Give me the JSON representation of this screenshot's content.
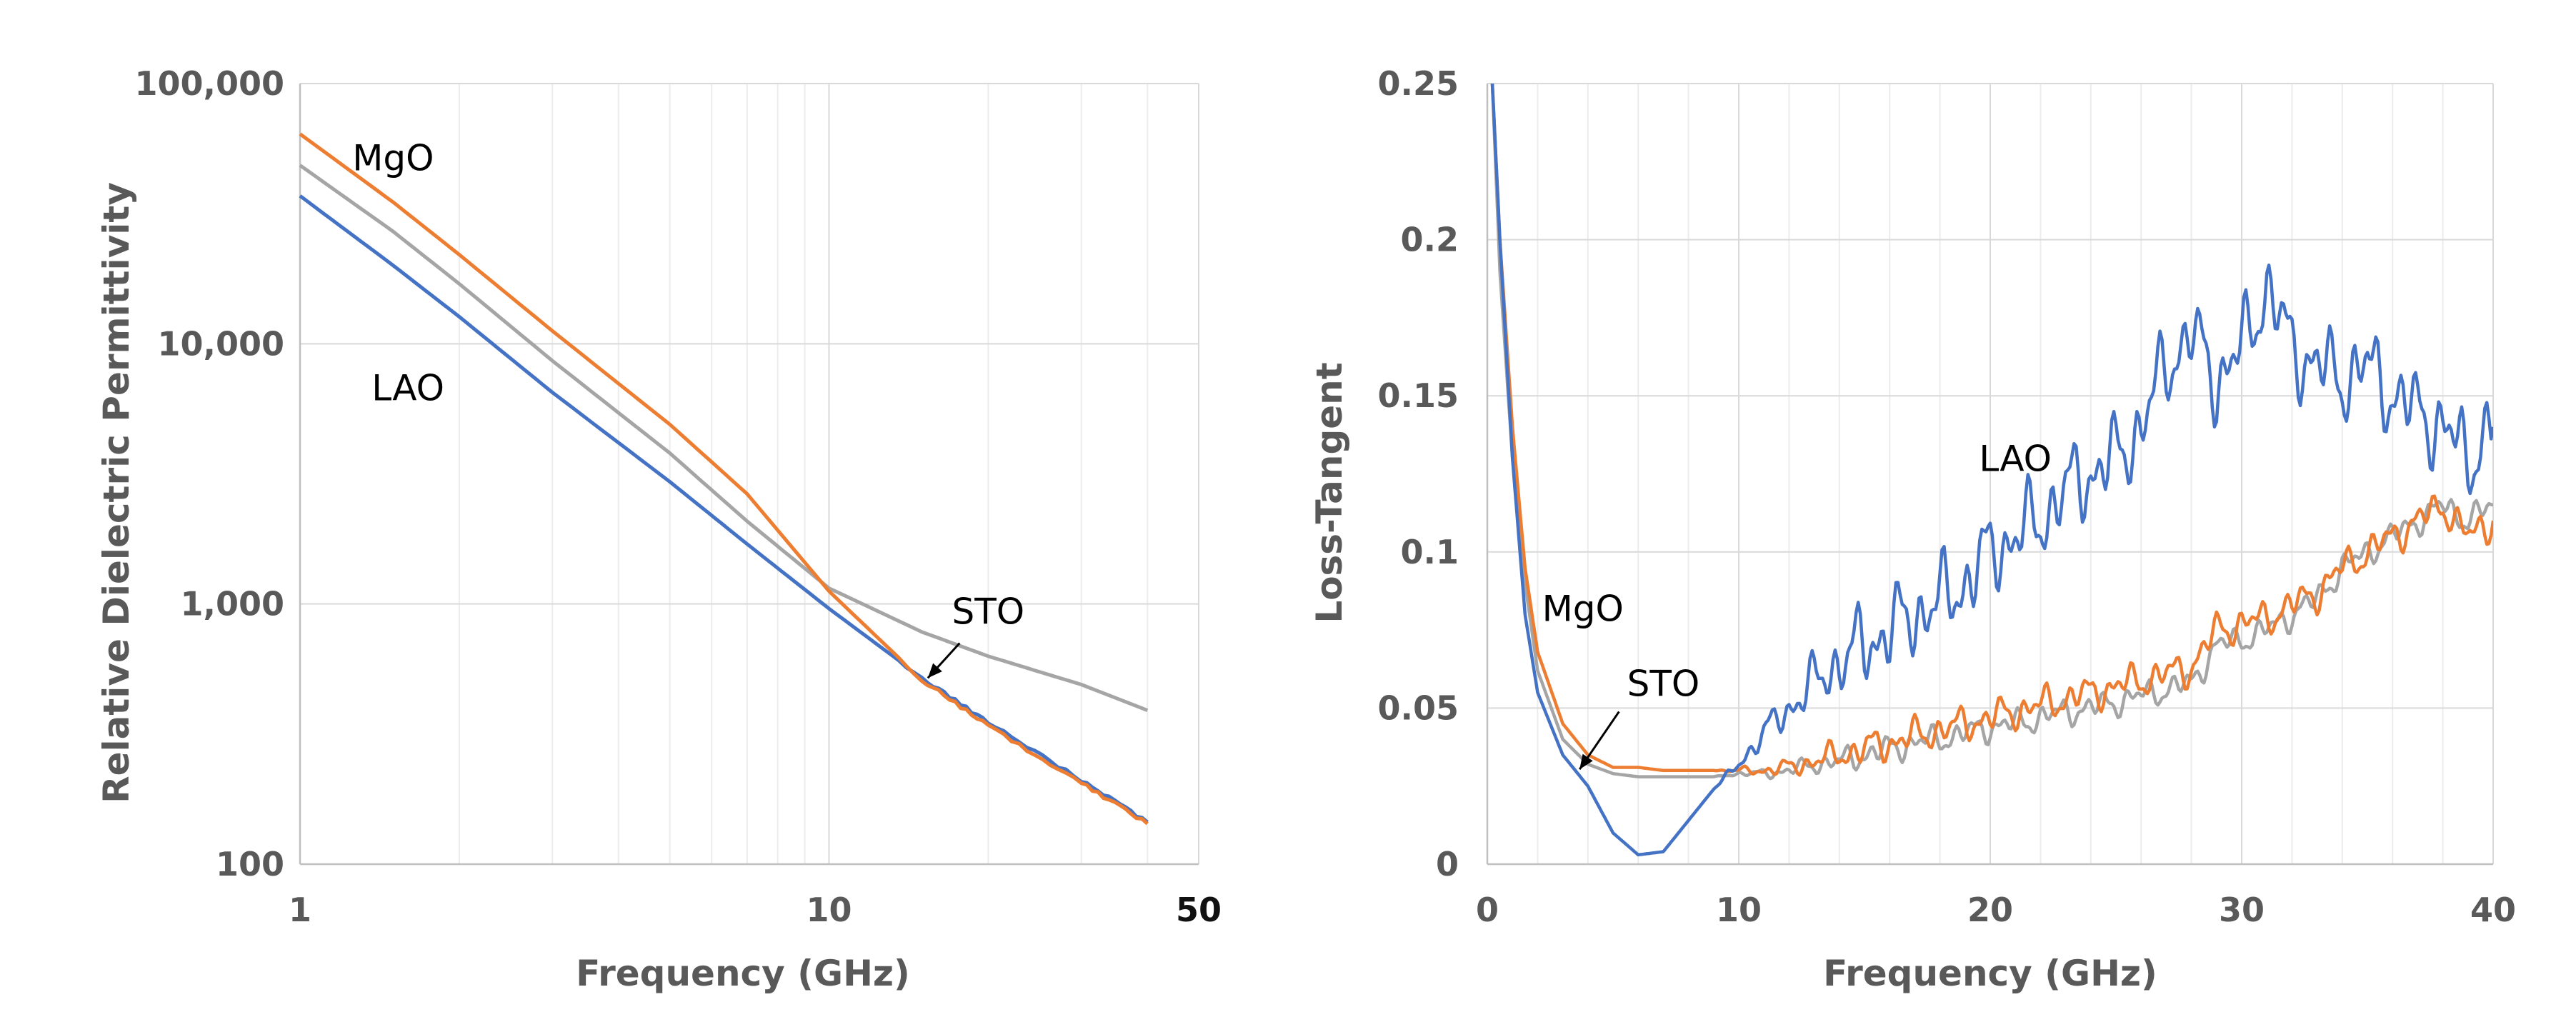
{
  "colors": {
    "LAO": "#4472c4",
    "MgO": "#ed7d31",
    "STO": "#a5a5a5"
  },
  "chart_data": [
    {
      "type": "line",
      "title": "",
      "xlabel": "Frequency (GHz)",
      "ylabel": "Relative Dielectric Permittivity",
      "x_scale": "log",
      "y_scale": "log",
      "xlim": [
        1,
        50
      ],
      "ylim": [
        100,
        100000
      ],
      "x_ticks": [
        {
          "value": 1,
          "label": "1"
        },
        {
          "value": 10,
          "label": "10"
        },
        {
          "value": 50,
          "label": "50"
        }
      ],
      "y_ticks": [
        {
          "value": 100,
          "label": "100"
        },
        {
          "value": 1000,
          "label": "1,000"
        },
        {
          "value": 10000,
          "label": "10,000"
        },
        {
          "value": 100000,
          "label": "100,000"
        }
      ],
      "grid": true,
      "legend": "none",
      "annotations": [
        {
          "text": "MgO",
          "x": 1.5,
          "y": 52000
        },
        {
          "text": "LAO",
          "x": 1.6,
          "y": 6800
        },
        {
          "text": "STO",
          "x": 20,
          "y": 940,
          "arrow_to": [
            15,
            500
          ]
        }
      ],
      "series": [
        {
          "name": "MgO",
          "x": [
            1,
            1.5,
            2,
            3,
            5,
            7,
            10,
            15,
            20,
            30,
            40
          ],
          "y": [
            64000,
            35000,
            22000,
            11200,
            4900,
            2650,
            1120,
            510,
            340,
            205,
            143
          ]
        },
        {
          "name": "LAO",
          "x": [
            1,
            1.5,
            2,
            3,
            5,
            7,
            10,
            15,
            20,
            30,
            40
          ],
          "y": [
            37000,
            20000,
            12700,
            6500,
            2950,
            1700,
            960,
            520,
            350,
            210,
            145
          ]
        },
        {
          "name": "STO",
          "x": [
            1,
            1.5,
            2,
            3,
            5,
            7,
            10,
            15,
            20,
            30,
            40
          ],
          "y": [
            48500,
            27000,
            17000,
            8600,
            3800,
            2080,
            1150,
            780,
            630,
            490,
            390
          ]
        }
      ]
    },
    {
      "type": "line",
      "title": "",
      "xlabel": "Frequency (GHz)",
      "ylabel": "Loss-Tangent",
      "xlim": [
        0,
        40
      ],
      "ylim": [
        0,
        0.25
      ],
      "x_ticks": [
        {
          "value": 0,
          "label": "0"
        },
        {
          "value": 10,
          "label": "10"
        },
        {
          "value": 20,
          "label": "20"
        },
        {
          "value": 30,
          "label": "30"
        },
        {
          "value": 40,
          "label": "40"
        }
      ],
      "y_ticks": [
        {
          "value": 0,
          "label": "0"
        },
        {
          "value": 0.05,
          "label": "0.05"
        },
        {
          "value": 0.1,
          "label": "0.1"
        },
        {
          "value": 0.15,
          "label": "0.15"
        },
        {
          "value": 0.2,
          "label": "0.2"
        },
        {
          "value": 0.25,
          "label": "0.25"
        }
      ],
      "grid": true,
      "legend": "none",
      "annotations": [
        {
          "text": "LAO",
          "x": 21,
          "y": 0.13
        },
        {
          "text": "MgO",
          "x": 3.8,
          "y": 0.082
        },
        {
          "text": "STO",
          "x": 7,
          "y": 0.058,
          "arrow_to": [
            3.5,
            0.029
          ]
        }
      ],
      "series": [
        {
          "name": "LAO",
          "x": [
            0.2,
            0.5,
            1,
            1.5,
            2,
            3,
            4,
            5,
            6,
            7,
            8,
            9,
            10,
            11,
            12,
            13,
            14,
            15,
            16,
            17,
            18,
            19,
            20,
            21,
            22,
            23,
            24,
            25,
            26,
            27,
            28,
            29,
            30,
            31,
            32,
            33,
            34,
            35,
            36,
            37,
            38,
            39,
            40
          ],
          "y": [
            0.25,
            0.2,
            0.13,
            0.08,
            0.055,
            0.035,
            0.025,
            0.01,
            0.003,
            0.004,
            0.014,
            0.024,
            0.032,
            0.042,
            0.05,
            0.058,
            0.065,
            0.07,
            0.075,
            0.08,
            0.084,
            0.09,
            0.1,
            0.105,
            0.11,
            0.12,
            0.125,
            0.13,
            0.14,
            0.16,
            0.17,
            0.155,
            0.165,
            0.185,
            0.165,
            0.16,
            0.155,
            0.16,
            0.15,
            0.145,
            0.14,
            0.13,
            0.14
          ]
        },
        {
          "name": "MgO",
          "x": [
            0.2,
            0.5,
            1,
            1.5,
            2,
            3,
            4,
            5,
            6,
            7,
            8,
            9,
            10,
            11,
            12,
            13,
            14,
            15,
            16,
            17,
            18,
            19,
            20,
            21,
            22,
            23,
            24,
            25,
            26,
            27,
            28,
            29,
            30,
            31,
            32,
            33,
            34,
            35,
            36,
            37,
            38,
            39,
            40
          ],
          "y": [
            0.25,
            0.2,
            0.14,
            0.095,
            0.068,
            0.045,
            0.035,
            0.031,
            0.031,
            0.03,
            0.03,
            0.03,
            0.03,
            0.03,
            0.031,
            0.033,
            0.035,
            0.037,
            0.039,
            0.041,
            0.043,
            0.045,
            0.047,
            0.049,
            0.051,
            0.053,
            0.055,
            0.057,
            0.059,
            0.061,
            0.063,
            0.075,
            0.077,
            0.079,
            0.083,
            0.087,
            0.095,
            0.1,
            0.105,
            0.11,
            0.115,
            0.105,
            0.11
          ]
        },
        {
          "name": "STO",
          "x": [
            0.2,
            0.5,
            1,
            1.5,
            2,
            3,
            4,
            5,
            6,
            7,
            8,
            9,
            10,
            11,
            12,
            13,
            14,
            15,
            16,
            17,
            18,
            19,
            20,
            21,
            22,
            23,
            24,
            25,
            26,
            27,
            28,
            29,
            30,
            31,
            32,
            33,
            34,
            35,
            36,
            37,
            38,
            39,
            40
          ],
          "y": [
            0.25,
            0.19,
            0.13,
            0.09,
            0.062,
            0.04,
            0.032,
            0.029,
            0.028,
            0.028,
            0.028,
            0.028,
            0.029,
            0.029,
            0.03,
            0.032,
            0.033,
            0.035,
            0.037,
            0.039,
            0.04,
            0.042,
            0.044,
            0.045,
            0.047,
            0.049,
            0.05,
            0.052,
            0.054,
            0.056,
            0.058,
            0.07,
            0.072,
            0.075,
            0.08,
            0.085,
            0.095,
            0.1,
            0.105,
            0.11,
            0.115,
            0.11,
            0.115
          ]
        }
      ]
    }
  ]
}
